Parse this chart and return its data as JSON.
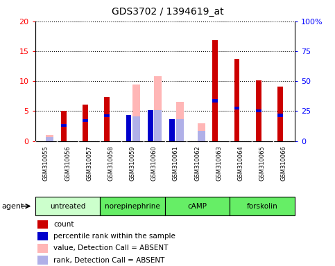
{
  "title": "GDS3702 / 1394619_at",
  "samples": [
    "GSM310055",
    "GSM310056",
    "GSM310057",
    "GSM310058",
    "GSM310059",
    "GSM310060",
    "GSM310061",
    "GSM310062",
    "GSM310063",
    "GSM310064",
    "GSM310065",
    "GSM310066"
  ],
  "count_values": [
    0.0,
    5.0,
    6.1,
    7.3,
    0.0,
    0.0,
    0.0,
    0.0,
    16.8,
    13.7,
    10.1,
    9.1
  ],
  "percentile_values": [
    0.0,
    2.6,
    3.4,
    4.2,
    4.4,
    5.1,
    3.7,
    0.0,
    6.7,
    5.5,
    5.0,
    4.3
  ],
  "absent_value_values": [
    1.0,
    0.0,
    0.0,
    0.0,
    9.4,
    10.8,
    6.5,
    2.9,
    0.0,
    0.0,
    0.0,
    0.0
  ],
  "absent_rank_values": [
    0.6,
    0.0,
    0.0,
    0.0,
    4.1,
    5.1,
    3.7,
    1.7,
    0.0,
    0.0,
    0.0,
    0.0
  ],
  "groups": [
    {
      "label": "untreated",
      "start": 0,
      "end": 3,
      "light": true
    },
    {
      "label": "norepinephrine",
      "start": 3,
      "end": 6,
      "light": false
    },
    {
      "label": "cAMP",
      "start": 6,
      "end": 9,
      "light": false
    },
    {
      "label": "forskolin",
      "start": 9,
      "end": 12,
      "light": false
    }
  ],
  "ylim_left": [
    0,
    20
  ],
  "ylim_right": [
    0,
    100
  ],
  "yticks_left": [
    0,
    5,
    10,
    15,
    20
  ],
  "yticks_right": [
    0,
    25,
    50,
    75,
    100
  ],
  "ytick_labels_right": [
    "0",
    "25",
    "50",
    "75",
    "100%"
  ],
  "color_count": "#cc0000",
  "color_percentile": "#0000cc",
  "color_absent_value": "#ffb6b6",
  "color_absent_rank": "#b0b0e8",
  "color_group_light": "#ccffcc",
  "color_group_dark": "#66ee66",
  "color_sample_bg": "#d8d8d8",
  "legend_items": [
    {
      "color": "#cc0000",
      "label": "count"
    },
    {
      "color": "#0000cc",
      "label": "percentile rank within the sample"
    },
    {
      "color": "#ffb6b6",
      "label": "value, Detection Call = ABSENT"
    },
    {
      "color": "#b0b0e8",
      "label": "rank, Detection Call = ABSENT"
    }
  ],
  "xlabel_agent": "agent"
}
